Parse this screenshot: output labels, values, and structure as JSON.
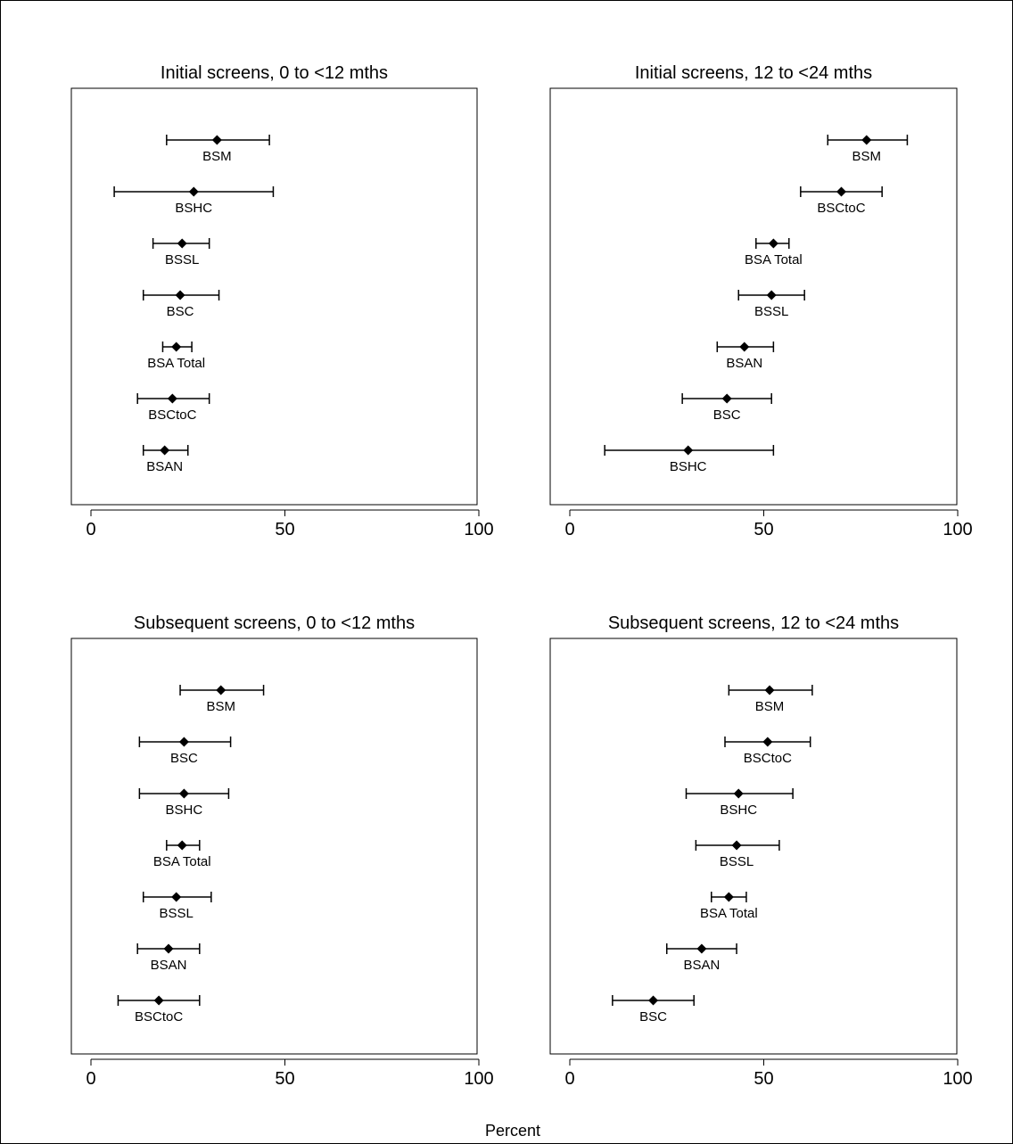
{
  "figure": {
    "xlabel": "Percent"
  },
  "chart_data": [
    {
      "type": "forest",
      "title": "Initial screens, 0 to <12 mths",
      "xlim": [
        0,
        100
      ],
      "xticks": [
        0,
        50,
        100
      ],
      "tick_labels": [
        "0",
        "50",
        "100"
      ],
      "points": [
        {
          "label": "BSM",
          "estimate": 32.5,
          "lower": 19.5,
          "upper": 46
        },
        {
          "label": "BSHC",
          "estimate": 26.5,
          "lower": 6,
          "upper": 47
        },
        {
          "label": "BSSL",
          "estimate": 23.5,
          "lower": 16,
          "upper": 30.5
        },
        {
          "label": "BSC",
          "estimate": 23,
          "lower": 13.5,
          "upper": 33
        },
        {
          "label": "BSA Total",
          "estimate": 22,
          "lower": 18.5,
          "upper": 26
        },
        {
          "label": "BSCtoC",
          "estimate": 21,
          "lower": 12,
          "upper": 30.5
        },
        {
          "label": "BSAN",
          "estimate": 19,
          "lower": 13.5,
          "upper": 25
        }
      ]
    },
    {
      "type": "forest",
      "title": "Initial screens, 12 to <24 mths",
      "xlim": [
        0,
        100
      ],
      "xticks": [
        0,
        50,
        100
      ],
      "tick_labels": [
        "0",
        "50",
        "100"
      ],
      "points": [
        {
          "label": "BSM",
          "estimate": 76.5,
          "lower": 66.5,
          "upper": 87
        },
        {
          "label": "BSCtoC",
          "estimate": 70,
          "lower": 59.5,
          "upper": 80.5
        },
        {
          "label": "BSA Total",
          "estimate": 52.5,
          "lower": 48,
          "upper": 56.5
        },
        {
          "label": "BSSL",
          "estimate": 52,
          "lower": 43.5,
          "upper": 60.5
        },
        {
          "label": "BSAN",
          "estimate": 45,
          "lower": 38,
          "upper": 52.5
        },
        {
          "label": "BSC",
          "estimate": 40.5,
          "lower": 29,
          "upper": 52
        },
        {
          "label": "BSHC",
          "estimate": 30.5,
          "lower": 9,
          "upper": 52.5
        }
      ]
    },
    {
      "type": "forest",
      "title": "Subsequent screens, 0 to <12 mths",
      "xlim": [
        0,
        100
      ],
      "xticks": [
        0,
        50,
        100
      ],
      "tick_labels": [
        "0",
        "50",
        "100"
      ],
      "points": [
        {
          "label": "BSM",
          "estimate": 33.5,
          "lower": 23,
          "upper": 44.5
        },
        {
          "label": "BSC",
          "estimate": 24,
          "lower": 12.5,
          "upper": 36
        },
        {
          "label": "BSHC",
          "estimate": 24,
          "lower": 12.5,
          "upper": 35.5
        },
        {
          "label": "BSA Total",
          "estimate": 23.5,
          "lower": 19.5,
          "upper": 28
        },
        {
          "label": "BSSL",
          "estimate": 22,
          "lower": 13.5,
          "upper": 31
        },
        {
          "label": "BSAN",
          "estimate": 20,
          "lower": 12,
          "upper": 28
        },
        {
          "label": "BSCtoC",
          "estimate": 17.5,
          "lower": 7,
          "upper": 28
        }
      ]
    },
    {
      "type": "forest",
      "title": "Subsequent screens, 12 to <24 mths",
      "xlim": [
        0,
        100
      ],
      "xticks": [
        0,
        50,
        100
      ],
      "tick_labels": [
        "0",
        "50",
        "100"
      ],
      "points": [
        {
          "label": "BSM",
          "estimate": 51.5,
          "lower": 41,
          "upper": 62.5
        },
        {
          "label": "BSCtoC",
          "estimate": 51,
          "lower": 40,
          "upper": 62
        },
        {
          "label": "BSHC",
          "estimate": 43.5,
          "lower": 30,
          "upper": 57.5
        },
        {
          "label": "BSSL",
          "estimate": 43,
          "lower": 32.5,
          "upper": 54
        },
        {
          "label": "BSA Total",
          "estimate": 41,
          "lower": 36.5,
          "upper": 45.5
        },
        {
          "label": "BSAN",
          "estimate": 34,
          "lower": 25,
          "upper": 43
        },
        {
          "label": "BSC",
          "estimate": 21.5,
          "lower": 11,
          "upper": 32
        }
      ]
    }
  ]
}
